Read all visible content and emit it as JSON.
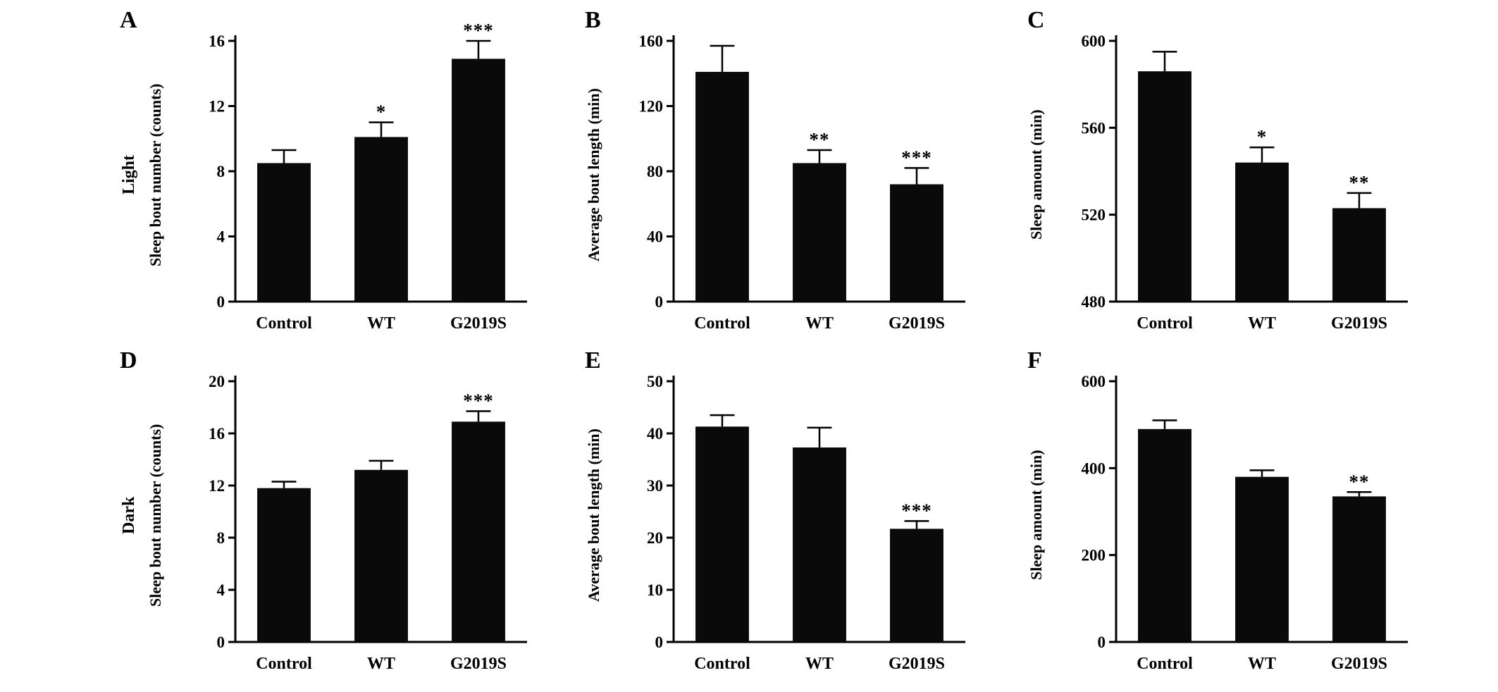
{
  "figure": {
    "background": "#ffffff",
    "bar_color": "#0a0a0a",
    "axis_color": "#000000"
  },
  "chart_data": [
    {
      "panel": "A",
      "row_label": "Light",
      "type": "bar",
      "categories": [
        "Control",
        "WT",
        "G2019S"
      ],
      "values": [
        8.5,
        10.1,
        14.9
      ],
      "errors": [
        0.8,
        0.9,
        1.1
      ],
      "significance": [
        "",
        "*",
        "***"
      ],
      "title": "",
      "xlabel": "",
      "ylabel": "Sleep bout number (counts)",
      "ylim": [
        0,
        16
      ],
      "yticks": [
        0,
        4,
        8,
        12,
        16
      ],
      "grid": false,
      "legend": "none"
    },
    {
      "panel": "B",
      "row_label": "",
      "type": "bar",
      "categories": [
        "Control",
        "WT",
        "G2019S"
      ],
      "values": [
        141,
        85,
        72
      ],
      "errors": [
        16,
        8,
        10
      ],
      "significance": [
        "",
        "**",
        "***"
      ],
      "title": "",
      "xlabel": "",
      "ylabel": "Average bout length (min)",
      "ylim": [
        0,
        160
      ],
      "yticks": [
        0,
        40,
        80,
        120,
        160
      ],
      "grid": false,
      "legend": "none"
    },
    {
      "panel": "C",
      "row_label": "",
      "type": "bar",
      "categories": [
        "Control",
        "WT",
        "G2019S"
      ],
      "values": [
        586,
        544,
        523
      ],
      "errors": [
        9,
        7,
        7
      ],
      "significance": [
        "",
        "*",
        "**"
      ],
      "title": "",
      "xlabel": "",
      "ylabel": "Sleep amount (min)",
      "ylim": [
        480,
        600
      ],
      "yticks": [
        480,
        520,
        560,
        600
      ],
      "grid": false,
      "legend": "none"
    },
    {
      "panel": "D",
      "row_label": "Dark",
      "type": "bar",
      "categories": [
        "Control",
        "WT",
        "G2019S"
      ],
      "values": [
        11.8,
        13.2,
        16.9
      ],
      "errors": [
        0.5,
        0.7,
        0.8
      ],
      "significance": [
        "",
        "",
        "***"
      ],
      "title": "",
      "xlabel": "",
      "ylabel": "Sleep bout number (counts)",
      "ylim": [
        0,
        20
      ],
      "yticks": [
        0,
        4,
        8,
        12,
        16,
        20
      ],
      "grid": false,
      "legend": "none"
    },
    {
      "panel": "E",
      "row_label": "",
      "type": "bar",
      "categories": [
        "Control",
        "WT",
        "G2019S"
      ],
      "values": [
        41.3,
        37.3,
        21.7
      ],
      "errors": [
        2.2,
        3.8,
        1.5
      ],
      "significance": [
        "",
        "",
        "***"
      ],
      "title": "",
      "xlabel": "",
      "ylabel": "Average bout length (min)",
      "ylim": [
        0,
        50
      ],
      "yticks": [
        0,
        10,
        20,
        30,
        40,
        50
      ],
      "grid": false,
      "legend": "none"
    },
    {
      "panel": "F",
      "row_label": "",
      "type": "bar",
      "categories": [
        "Control",
        "WT",
        "G2019S"
      ],
      "values": [
        490,
        380,
        335
      ],
      "errors": [
        20,
        15,
        10
      ],
      "significance": [
        "",
        "",
        "**"
      ],
      "title": "",
      "xlabel": "",
      "ylabel": "Sleep amount (min)",
      "ylim": [
        0,
        600
      ],
      "yticks": [
        0,
        200,
        400,
        600
      ],
      "grid": false,
      "legend": "none"
    }
  ]
}
